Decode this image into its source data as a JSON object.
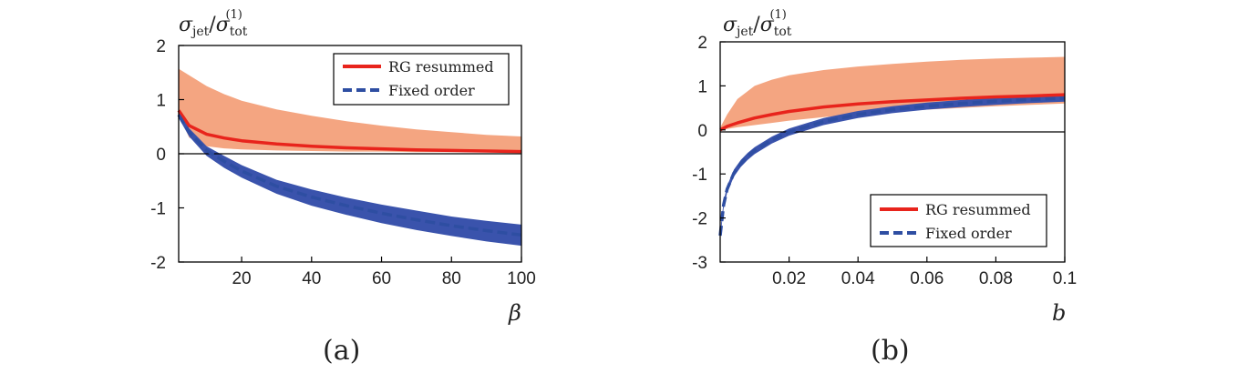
{
  "chart_data": [
    {
      "panel_label": "(a)",
      "type": "line",
      "title": "",
      "ylabel": {
        "main": "σ",
        "sub1": "jet",
        "slash": "/",
        "main2": "σ",
        "sub2": "tot",
        "sup2": "(1)"
      },
      "xlabel": "β",
      "xlim": [
        2,
        100
      ],
      "ylim": [
        -2,
        2
      ],
      "xticks": [
        20,
        40,
        60,
        80,
        100
      ],
      "yticks": [
        -2,
        -1,
        0,
        1,
        2
      ],
      "xtick_labels": [
        "20",
        "40",
        "60",
        "80",
        "100"
      ],
      "ytick_labels": [
        "-2",
        "-1",
        "0",
        "1",
        "2"
      ],
      "legend": {
        "position": "top-right",
        "entries": [
          "RG resummed",
          "Fixed order"
        ]
      },
      "zero_line": 0,
      "series": [
        {
          "name": "RG resummed",
          "style": "solid",
          "color": "#e8241c",
          "x": [
            2,
            5,
            10,
            15,
            20,
            30,
            40,
            50,
            60,
            70,
            80,
            90,
            100
          ],
          "y": [
            0.8,
            0.52,
            0.36,
            0.29,
            0.24,
            0.18,
            0.14,
            0.11,
            0.09,
            0.07,
            0.06,
            0.05,
            0.04
          ],
          "band_color": "#f4a581",
          "band_lower": [
            0.72,
            0.3,
            0.14,
            0.1,
            0.08,
            0.06,
            0.05,
            0.04,
            0.04,
            0.03,
            0.03,
            0.03,
            0.03
          ],
          "band_upper": [
            1.57,
            1.45,
            1.25,
            1.1,
            0.98,
            0.82,
            0.7,
            0.6,
            0.52,
            0.45,
            0.4,
            0.35,
            0.32
          ]
        },
        {
          "name": "Fixed order",
          "style": "dashed",
          "color": "#2e4ea2",
          "x": [
            2,
            5,
            10,
            15,
            20,
            30,
            40,
            50,
            60,
            70,
            80,
            90,
            100
          ],
          "y": [
            0.72,
            0.4,
            0.06,
            -0.14,
            -0.32,
            -0.6,
            -0.8,
            -0.96,
            -1.1,
            -1.22,
            -1.33,
            -1.42,
            -1.5
          ],
          "band_color": "#3a53ac",
          "band_lower": [
            0.66,
            0.32,
            -0.04,
            -0.26,
            -0.44,
            -0.74,
            -0.96,
            -1.13,
            -1.28,
            -1.41,
            -1.52,
            -1.62,
            -1.7
          ],
          "band_upper": [
            0.78,
            0.47,
            0.14,
            -0.04,
            -0.21,
            -0.48,
            -0.66,
            -0.81,
            -0.94,
            -1.05,
            -1.16,
            -1.24,
            -1.31
          ]
        }
      ]
    },
    {
      "panel_label": "(b)",
      "type": "line",
      "title": "",
      "ylabel": {
        "main": "σ",
        "sub1": "jet",
        "slash": "/",
        "main2": "σ",
        "sub2": "tot",
        "sup2": "(1)"
      },
      "xlabel": "b",
      "xlim": [
        0,
        0.1
      ],
      "ylim": [
        -3,
        2
      ],
      "xticks": [
        0.02,
        0.04,
        0.06,
        0.08,
        0.1
      ],
      "yticks": [
        -3,
        -2,
        -1,
        0,
        1,
        2
      ],
      "xtick_labels": [
        "0.02",
        "0.04",
        "0.06",
        "0.08",
        "0.1"
      ],
      "ytick_labels": [
        "-3",
        "-2",
        "-1",
        "0",
        "1",
        "2"
      ],
      "legend": {
        "position": "bottom-right",
        "entries": [
          "RG resummed",
          "Fixed order"
        ]
      },
      "zero_line": 0,
      "series": [
        {
          "name": "RG resummed",
          "style": "solid",
          "color": "#e8241c",
          "x": [
            0,
            0.002,
            0.005,
            0.01,
            0.015,
            0.02,
            0.03,
            0.04,
            0.05,
            0.06,
            0.07,
            0.08,
            0.09,
            0.1
          ],
          "y": [
            0.0,
            0.08,
            0.16,
            0.27,
            0.35,
            0.42,
            0.52,
            0.59,
            0.64,
            0.68,
            0.72,
            0.75,
            0.77,
            0.8
          ],
          "band_color": "#f4a581",
          "band_lower": [
            0.0,
            0.02,
            0.06,
            0.11,
            0.16,
            0.21,
            0.29,
            0.36,
            0.41,
            0.46,
            0.5,
            0.54,
            0.57,
            0.6
          ],
          "band_upper": [
            0.05,
            0.35,
            0.7,
            1.0,
            1.14,
            1.24,
            1.36,
            1.44,
            1.5,
            1.55,
            1.59,
            1.62,
            1.64,
            1.66
          ]
        },
        {
          "name": "Fixed order",
          "style": "dashed",
          "color": "#2e4ea2",
          "x": [
            0,
            0.001,
            0.002,
            0.004,
            0.006,
            0.008,
            0.01,
            0.015,
            0.02,
            0.03,
            0.04,
            0.05,
            0.06,
            0.07,
            0.08,
            0.09,
            0.1
          ],
          "y": [
            -2.4,
            -1.7,
            -1.35,
            -0.98,
            -0.76,
            -0.6,
            -0.47,
            -0.23,
            -0.05,
            0.19,
            0.35,
            0.46,
            0.54,
            0.6,
            0.65,
            0.69,
            0.72
          ],
          "band_color": "#3a53ac",
          "band_lower": [
            -2.48,
            -1.78,
            -1.43,
            -1.06,
            -0.84,
            -0.68,
            -0.55,
            -0.31,
            -0.13,
            0.11,
            0.27,
            0.38,
            0.46,
            0.52,
            0.57,
            0.61,
            0.64
          ],
          "band_upper": [
            -2.32,
            -1.62,
            -1.27,
            -0.9,
            -0.68,
            -0.52,
            -0.39,
            -0.15,
            0.03,
            0.27,
            0.43,
            0.54,
            0.62,
            0.68,
            0.73,
            0.77,
            0.8
          ]
        }
      ]
    }
  ]
}
